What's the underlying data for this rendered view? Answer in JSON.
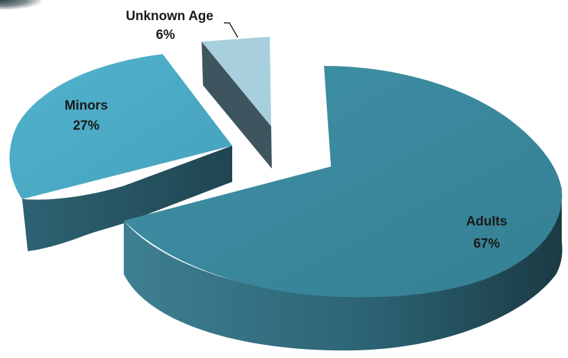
{
  "chart_data": {
    "type": "pie",
    "title": "",
    "legend": "none",
    "slices": [
      {
        "name": "Adults",
        "value": 67,
        "label": "67%",
        "color": "#3a8ba0"
      },
      {
        "name": "Minors",
        "value": 27,
        "label": "27%",
        "color": "#4aa8c4"
      },
      {
        "name": "Unknown Age",
        "value": 6,
        "label": "6%",
        "color": "#a7cfdc"
      }
    ]
  }
}
